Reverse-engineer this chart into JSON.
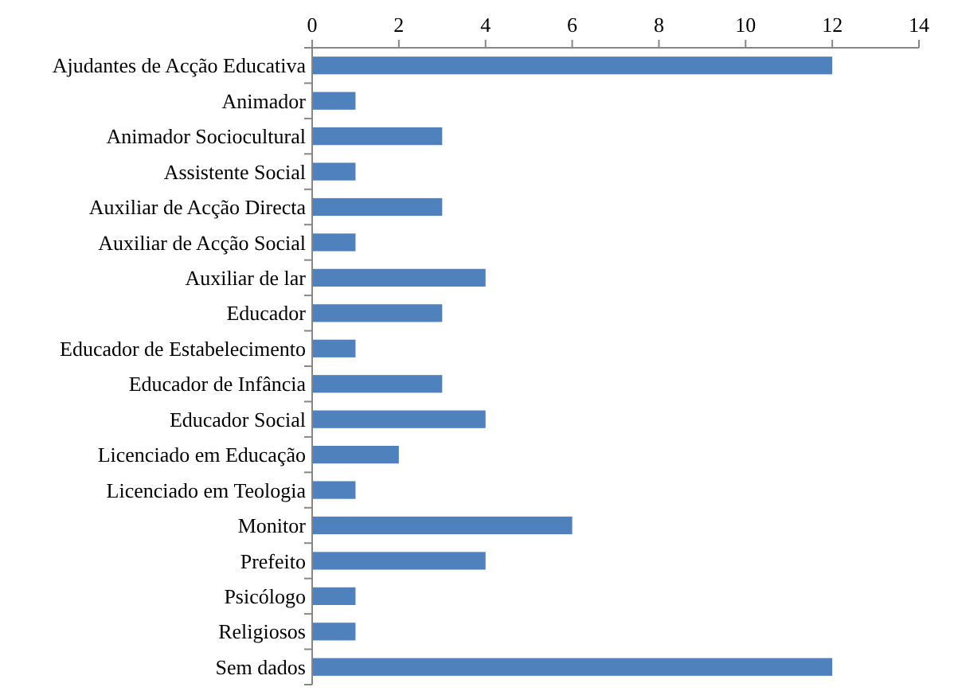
{
  "chart_data": {
    "type": "bar",
    "orientation": "horizontal",
    "categories": [
      "Ajudantes de Acção Educativa",
      "Animador",
      "Animador Sociocultural",
      "Assistente Social",
      "Auxiliar de Acção Directa",
      "Auxiliar de Acção Social",
      "Auxiliar de lar",
      "Educador",
      "Educador de Estabelecimento",
      "Educador de Infância",
      "Educador Social",
      "Licenciado em Educação",
      "Licenciado em Teologia",
      "Monitor",
      "Prefeito",
      "Psicólogo",
      "Religiosos",
      "Sem dados"
    ],
    "values": [
      12,
      1,
      3,
      1,
      3,
      1,
      4,
      3,
      1,
      3,
      4,
      2,
      1,
      6,
      4,
      1,
      1,
      12
    ],
    "color": "#4f81bd",
    "xlim": [
      0,
      14
    ],
    "xticks": [
      0,
      2,
      4,
      6,
      8,
      10,
      12,
      14
    ],
    "grid": false
  }
}
